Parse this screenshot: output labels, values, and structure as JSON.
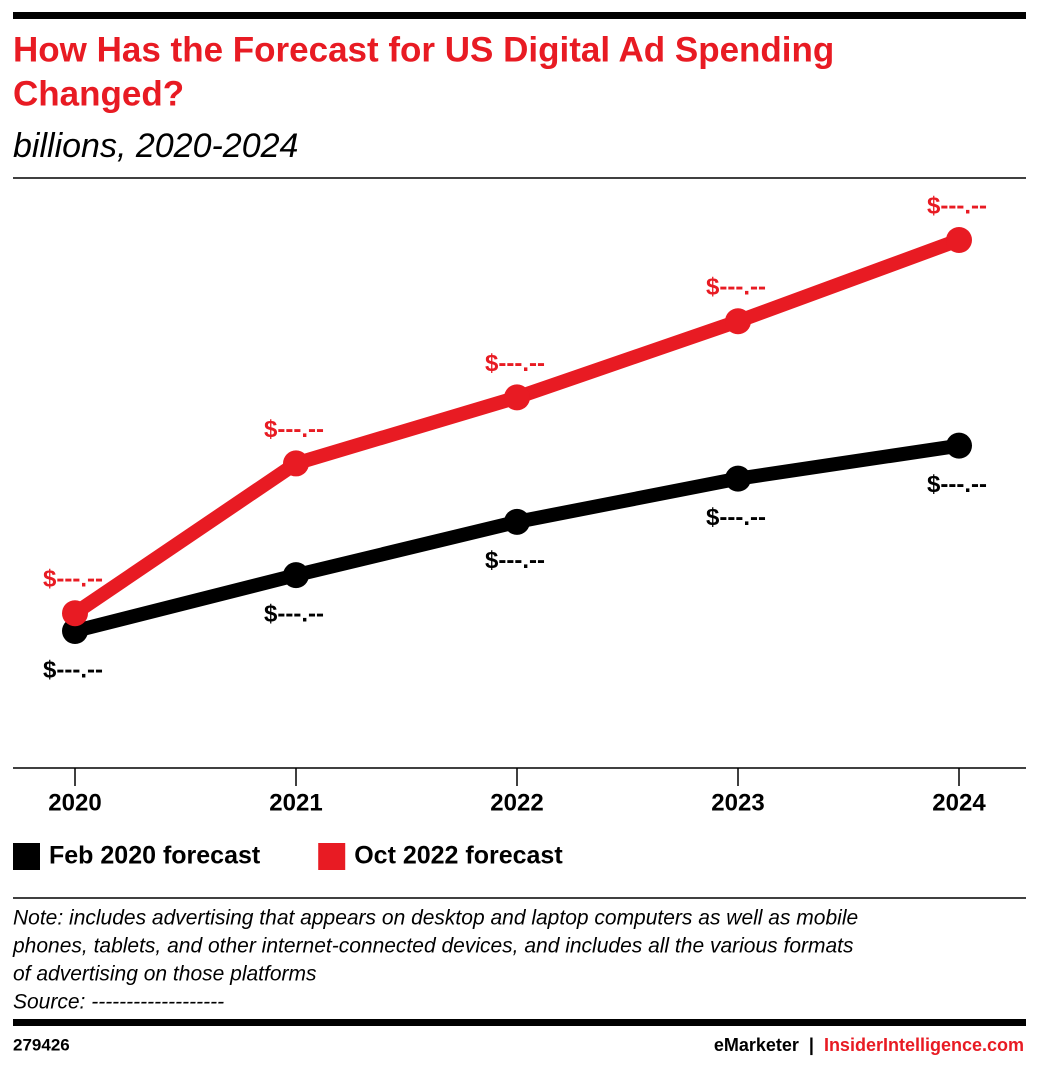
{
  "chart_data": {
    "type": "line",
    "title": [
      "How Has the Forecast for US Digital Ad Spending",
      "Changed?"
    ],
    "subtitle": "billions, 2020-2024",
    "categories": [
      "2020",
      "2021",
      "2022",
      "2023",
      "2024"
    ],
    "series": [
      {
        "name": "Feb 2020 forecast",
        "color": "#000000",
        "values": [
          150,
          172,
          193,
          210,
          223
        ],
        "value_labels": [
          "$---.--",
          "$---.--",
          "$---.--",
          "$---.--",
          "$---.--"
        ]
      },
      {
        "name": "Oct 2022 forecast",
        "color": "#e81b23",
        "values": [
          157,
          216,
          242,
          272,
          304
        ],
        "value_labels": [
          "$---.--",
          "$---.--",
          "$---.--",
          "$---.--",
          "$---.--"
        ]
      }
    ],
    "note": [
      "Note: includes advertising that appears on desktop and laptop computers as well as mobile",
      "phones, tablets, and other internet-connected devices, and includes all the various formats",
      "of advertising on those platforms",
      "Source: -------------------"
    ],
    "chart_id": "279426",
    "brand": "eMarketer",
    "site": "InsiderIntelligence.com"
  }
}
